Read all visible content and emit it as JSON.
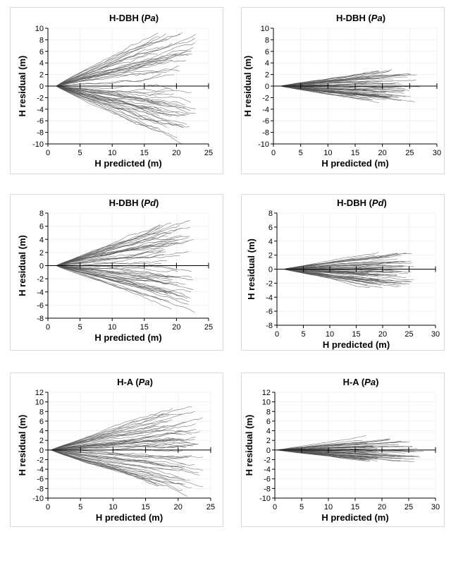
{
  "chart_data": [
    {
      "type": "line",
      "title": "H-DBH ",
      "title_species": "Pa",
      "title_close": ")",
      "xlabel": "H predicted (m)",
      "ylabel": "H residual (m)",
      "xlim": [
        0,
        25
      ],
      "ylim": [
        -10,
        10
      ],
      "xticks": [
        0,
        5,
        10,
        15,
        20,
        25
      ],
      "yticks": [
        -10,
        -8,
        -6,
        -4,
        -2,
        0,
        2,
        4,
        6,
        8,
        10
      ],
      "n_series": 60,
      "x_start": 1.3,
      "x_end_range": [
        17,
        23
      ],
      "spread": 8.5,
      "seed": 11,
      "axis_marks": [
        5,
        10,
        15,
        20,
        25
      ]
    },
    {
      "type": "line",
      "title": "H-DBH ",
      "title_species": "Pa",
      "title_close": ")",
      "xlabel": "H predicted (m)",
      "ylabel": "H residual (m)",
      "xlim": [
        0,
        30
      ],
      "ylim": [
        -10,
        10
      ],
      "xticks": [
        0,
        5,
        10,
        15,
        20,
        25,
        30
      ],
      "yticks": [
        -10,
        -8,
        -6,
        -4,
        -2,
        0,
        2,
        4,
        6,
        8,
        10
      ],
      "n_series": 60,
      "x_start": 1.3,
      "x_end_range": [
        17,
        27
      ],
      "spread": 2.6,
      "seed": 23,
      "axis_marks": [
        5,
        10,
        15,
        20,
        25,
        30
      ]
    },
    {
      "type": "line",
      "title": "H-DBH ",
      "title_species": "Pd",
      "title_close": ")",
      "xlabel": "H predicted (m)",
      "ylabel": "H residual (m)",
      "xlim": [
        0,
        25
      ],
      "ylim": [
        -8,
        8
      ],
      "xticks": [
        0,
        5,
        10,
        15,
        20,
        25
      ],
      "yticks": [
        -8,
        -6,
        -4,
        -2,
        0,
        2,
        4,
        6,
        8
      ],
      "n_series": 60,
      "x_start": 1.3,
      "x_end_range": [
        17,
        23
      ],
      "spread": 5.8,
      "seed": 37,
      "axis_marks": [
        5,
        10,
        15,
        20,
        25
      ]
    },
    {
      "type": "line",
      "title": "H-DBH ",
      "title_species": "Pd",
      "title_close": ")",
      "xlabel": "H predicted (m)",
      "ylabel": "H residual (m)",
      "xlim": [
        0,
        30
      ],
      "ylim": [
        -8,
        8
      ],
      "xticks": [
        0,
        5,
        10,
        15,
        20,
        25,
        30
      ],
      "yticks": [
        -8,
        -6,
        -4,
        -2,
        0,
        2,
        4,
        6,
        8
      ],
      "n_series": 60,
      "x_start": 1.3,
      "x_end_range": [
        17,
        26
      ],
      "spread": 2.4,
      "seed": 41,
      "axis_marks": [
        5,
        10,
        15,
        20,
        25,
        30
      ]
    },
    {
      "type": "line",
      "title": "H-A (",
      "title_species": "Pa",
      "title_close": ")",
      "xlabel": "H predicted (m)",
      "ylabel": "H residual (m)",
      "xlim": [
        0,
        25
      ],
      "ylim": [
        -10,
        12
      ],
      "xticks": [
        0,
        5,
        10,
        15,
        20,
        25
      ],
      "yticks": [
        -10,
        -8,
        -6,
        -4,
        -2,
        0,
        2,
        4,
        6,
        8,
        10,
        12
      ],
      "n_series": 60,
      "x_start": 0.5,
      "x_end_range": [
        16,
        24
      ],
      "spread": 8.5,
      "seed": 53,
      "axis_marks": [
        5,
        10,
        15,
        20,
        25
      ]
    },
    {
      "type": "line",
      "title": "H-A (",
      "title_species": "Pa",
      "title_close": ")",
      "xlabel": "H predicted (m)",
      "ylabel": "H residual (m)",
      "xlim": [
        0,
        30
      ],
      "ylim": [
        -10,
        12
      ],
      "xticks": [
        0,
        5,
        10,
        15,
        20,
        25,
        30
      ],
      "yticks": [
        -10,
        -8,
        -6,
        -4,
        -2,
        0,
        2,
        4,
        6,
        8,
        10,
        12
      ],
      "n_series": 60,
      "x_start": 0.5,
      "x_end_range": [
        16,
        28
      ],
      "spread": 2.4,
      "seed": 67,
      "axis_marks": [
        5,
        10,
        15,
        20,
        25,
        30
      ]
    }
  ]
}
